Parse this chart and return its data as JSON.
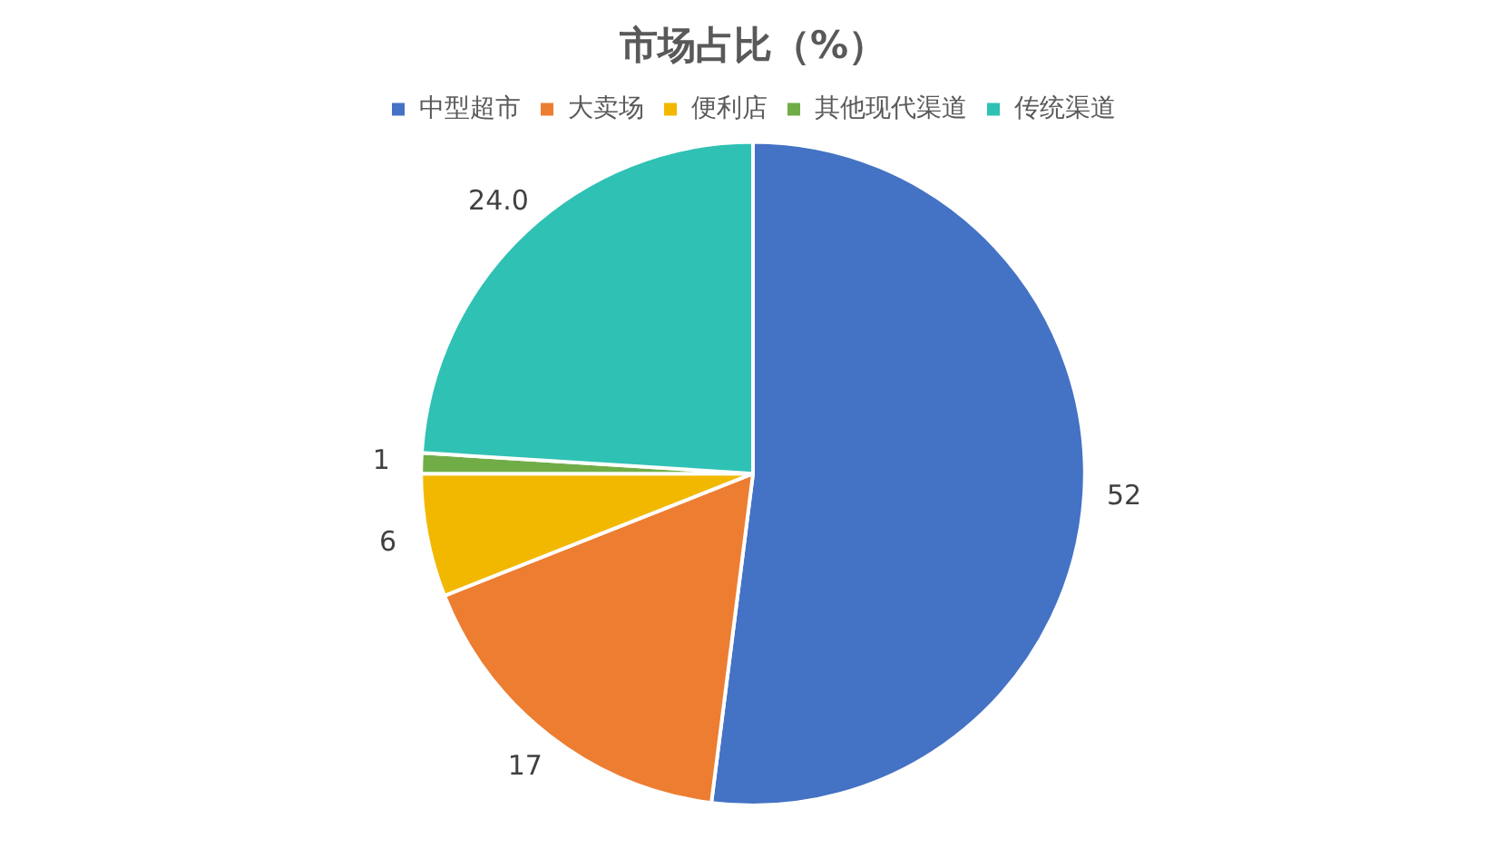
{
  "chart_data": {
    "type": "pie",
    "title": "市场占比（%）",
    "categories": [
      "中型超市",
      "大卖场",
      "便利店",
      "其他现代渠道",
      "传统渠道"
    ],
    "values": [
      52,
      17,
      6,
      1,
      24.0
    ],
    "value_labels": [
      "52",
      "17",
      "6",
      "1",
      "24.0"
    ],
    "colors": [
      "#4472c4",
      "#ed7d31",
      "#f2b800",
      "#70ad47",
      "#2fc1b4"
    ],
    "legend": "top"
  }
}
